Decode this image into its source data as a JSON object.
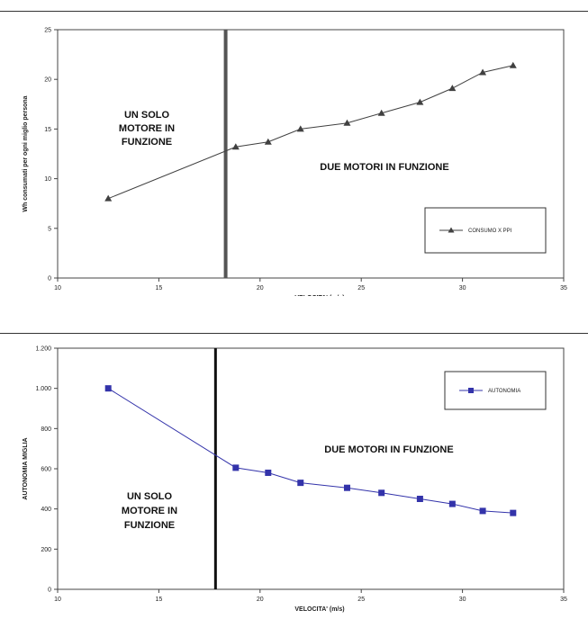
{
  "chart_data": [
    {
      "type": "line",
      "title": "",
      "xlabel": "VELOCITA' (m/s)",
      "ylabel": "Wh consumati per ogni miglio persona",
      "xlim": [
        10,
        35
      ],
      "ylim": [
        0,
        25
      ],
      "xticks": [
        10,
        15,
        20,
        25,
        30,
        35
      ],
      "yticks": [
        0,
        5,
        10,
        15,
        20,
        25
      ],
      "grid": false,
      "legend_position": "bottom-right",
      "series": [
        {
          "name": "CONSUMO X PPI",
          "color": "#404040",
          "x": [
            12.5,
            18.8,
            20.4,
            22.0,
            24.3,
            26.0,
            27.9,
            29.5,
            31.0,
            32.5
          ],
          "y": [
            8.0,
            13.2,
            13.7,
            15.0,
            15.6,
            16.6,
            17.7,
            19.1,
            20.7,
            21.4
          ]
        }
      ],
      "divider_x": 18.3,
      "annotations": [
        {
          "lines": [
            "UN SOLO",
            "MOTORE IN",
            "FUNZIONE"
          ]
        },
        {
          "lines": [
            "DUE MOTORI IN FUNZIONE"
          ]
        }
      ]
    },
    {
      "type": "line",
      "title": "",
      "xlabel": "VELOCITA' (m/s)",
      "ylabel": "AUTONOMIA MIGLIA",
      "xlim": [
        10,
        35
      ],
      "ylim": [
        0,
        1200
      ],
      "xticks": [
        10,
        15,
        20,
        25,
        30,
        35
      ],
      "yticks": [
        0,
        200,
        400,
        600,
        800,
        1000,
        1200
      ],
      "grid": false,
      "legend_position": "top-right",
      "series": [
        {
          "name": "AUTONOMIA",
          "color": "#3333aa",
          "x": [
            12.5,
            18.8,
            20.4,
            22.0,
            24.3,
            26.0,
            27.9,
            29.5,
            31.0,
            32.5
          ],
          "y": [
            1000,
            605,
            580,
            530,
            505,
            480,
            450,
            425,
            390,
            380
          ]
        }
      ],
      "divider_x": 17.8,
      "annotations": [
        {
          "lines": [
            "UN SOLO",
            "MOTORE IN",
            "FUNZIONE"
          ]
        },
        {
          "lines": [
            "DUE MOTORI IN FUNZIONE"
          ]
        }
      ]
    }
  ]
}
